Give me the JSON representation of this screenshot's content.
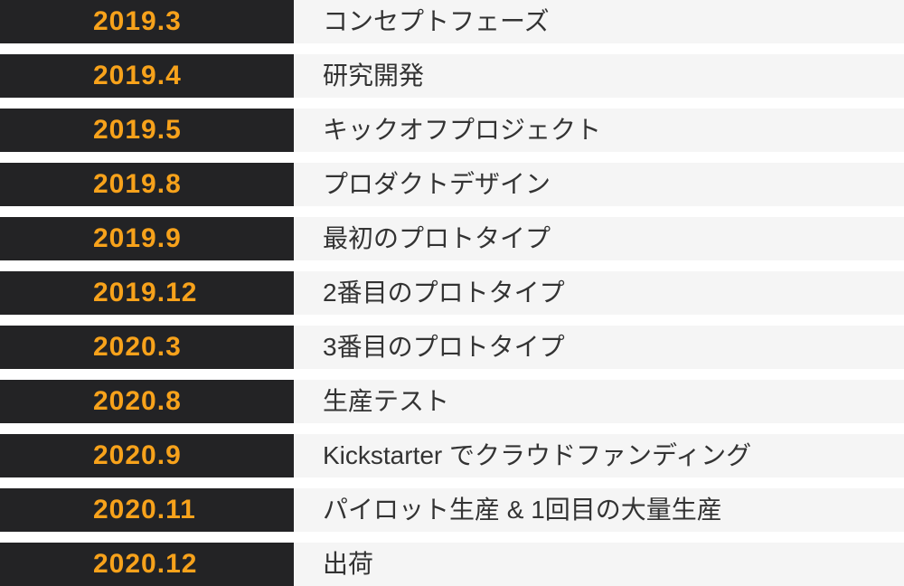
{
  "colors": {
    "bar_background": "#232325",
    "date_text": "#f7a21b",
    "row_background": "#f5f5f5",
    "label_text": "#333333",
    "gap": "#ffffff"
  },
  "timeline": {
    "rows": [
      {
        "date": "2019.3",
        "label": "コンセプトフェーズ"
      },
      {
        "date": "2019.4",
        "label": "研究開発"
      },
      {
        "date": "2019.5",
        "label": "キックオフプロジェクト"
      },
      {
        "date": "2019.8",
        "label": "プロダクトデザイン"
      },
      {
        "date": "2019.9",
        "label": "最初のプロトタイプ"
      },
      {
        "date": "2019.12",
        "label": "2番目のプロトタイプ"
      },
      {
        "date": "2020.3",
        "label": "3番目のプロトタイプ"
      },
      {
        "date": "2020.8",
        "label": "生産テスト"
      },
      {
        "date": "2020.9",
        "label": "Kickstarter でクラウドファンディング"
      },
      {
        "date": "2020.11",
        "label": "パイロット生産 & 1回目の大量生産"
      },
      {
        "date": "2020.12",
        "label": "出荷"
      }
    ]
  }
}
